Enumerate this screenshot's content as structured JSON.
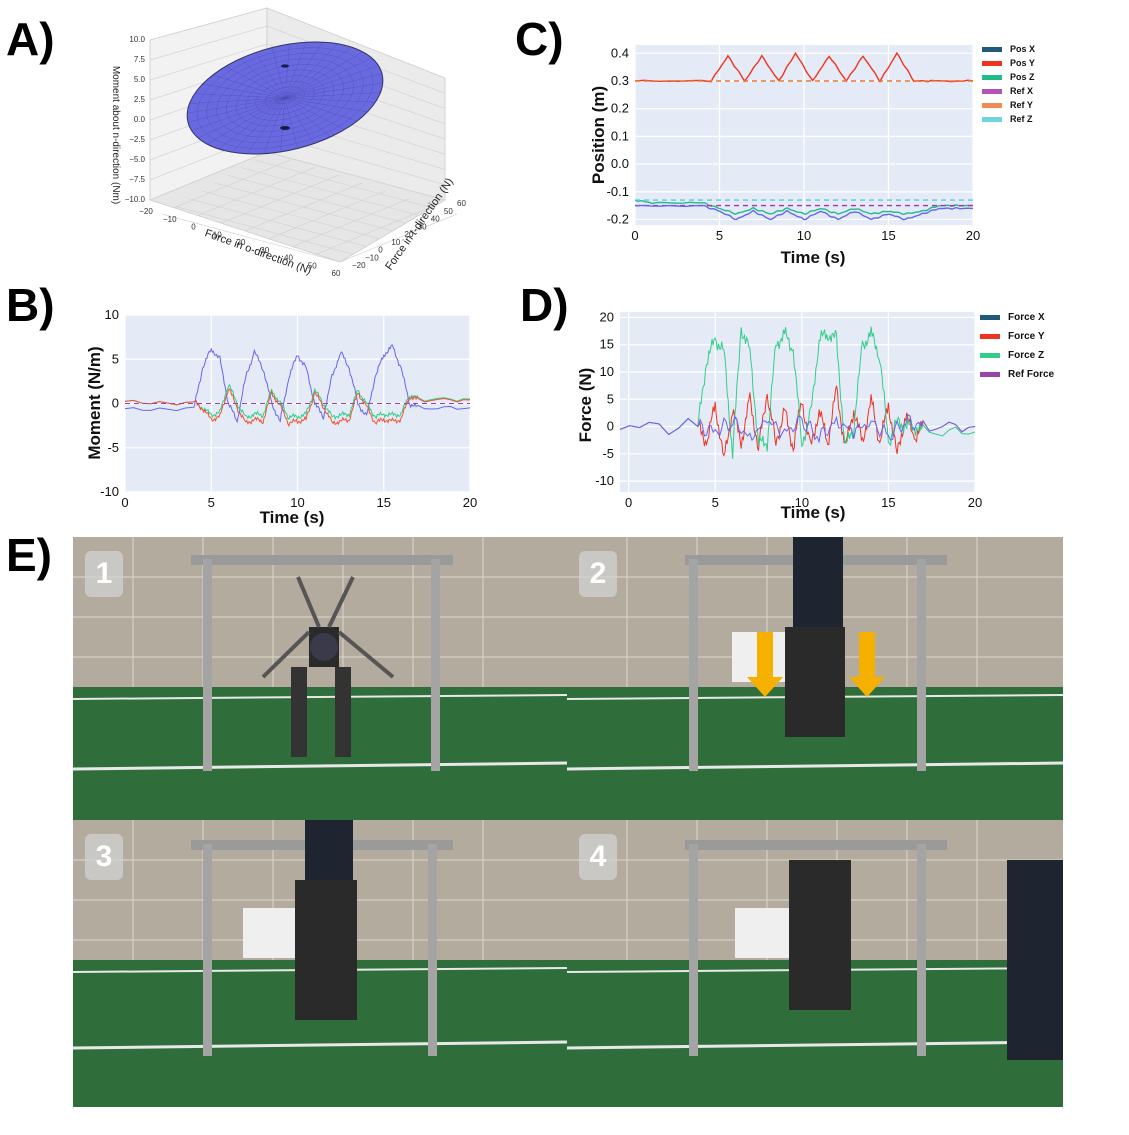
{
  "labels": {
    "a": "A)",
    "b": "B)",
    "c": "C)",
    "d": "D)",
    "e": "E)"
  },
  "chart_data": [
    {
      "panel": "A",
      "type": "scatter",
      "xlabel": "Force in o-direction (N)",
      "ylabel": "Force in t-direction (N)",
      "zlabel": "Moment about n-direction (Nm)",
      "xticks": [
        "−20",
        "−10",
        "0",
        "10",
        "20",
        "30",
        "40",
        "50",
        "60"
      ],
      "yticks": [
        "−20",
        "−10",
        "0",
        "10",
        "20",
        "30",
        "40",
        "50",
        "60"
      ],
      "zticks": [
        "−10.0",
        "−7.5",
        "−5.0",
        "−2.5",
        "0.0",
        "2.5",
        "5.0",
        "7.5",
        "10.0"
      ],
      "surface_color": "#6a6ae0",
      "grid": true
    },
    {
      "panel": "B",
      "type": "line",
      "xlabel": "Time (s)",
      "ylabel": "Moment (N/m)",
      "xlim": [
        0,
        20
      ],
      "ylim": [
        -10,
        10
      ],
      "xticks": [
        0,
        5,
        10,
        15,
        20
      ],
      "yticks": [
        10,
        5,
        0,
        -5,
        -10
      ],
      "series": [
        {
          "color": "#6666ee",
          "x": [
            0,
            4,
            4.5,
            5,
            5.5,
            6,
            6.5,
            7,
            7.5,
            8,
            8.5,
            9,
            9.5,
            10,
            10.5,
            11,
            11.5,
            12,
            12.5,
            13,
            13.5,
            14,
            14.5,
            15,
            15.5,
            16,
            16.5,
            17,
            20
          ],
          "y": [
            -0.5,
            -0.5,
            4,
            6.2,
            5,
            0,
            -2,
            3,
            5.8,
            4,
            0,
            -2,
            3,
            5.5,
            4,
            0,
            -1.5,
            3,
            5.8,
            4,
            0,
            -1.5,
            3,
            5.5,
            6.5,
            4,
            0,
            -0.5,
            -0.5
          ]
        },
        {
          "color": "#33cc88",
          "x": [
            0,
            4,
            4.5,
            5,
            5.5,
            6,
            6.5,
            7,
            7.5,
            8,
            8.5,
            9,
            9.5,
            10,
            10.5,
            11,
            11.5,
            12,
            12.5,
            13,
            13.5,
            14,
            14.5,
            15,
            15.5,
            16,
            16.5,
            17,
            20
          ],
          "y": [
            0.2,
            0.2,
            -0.5,
            -1.3,
            -1,
            2.2,
            0,
            -1.6,
            -1.2,
            -1.3,
            1.5,
            0,
            -1.5,
            -1.5,
            -1.2,
            1.5,
            0,
            -1.5,
            -1.3,
            -1.2,
            1.5,
            0,
            -1.5,
            -1.2,
            -1.3,
            -1.2,
            1,
            0.5,
            0.5
          ]
        },
        {
          "color": "#ee5533",
          "x": [
            0,
            4,
            4.5,
            5,
            5.5,
            6,
            6.5,
            7,
            7.5,
            8,
            8.5,
            9,
            9.5,
            10,
            10.5,
            11,
            11.5,
            12,
            12.5,
            13,
            13.5,
            14,
            14.5,
            15,
            15.5,
            16,
            16.5,
            17,
            20
          ],
          "y": [
            0.2,
            0.2,
            -0.6,
            -1.8,
            -1.5,
            1.8,
            -0.5,
            -2.2,
            -1.8,
            -2,
            1.2,
            -0.3,
            -2.2,
            -2,
            -1.8,
            1.2,
            -0.3,
            -2.2,
            -2,
            -1.8,
            1.2,
            -0.3,
            -2.2,
            -1.8,
            -2,
            -1.8,
            0.8,
            0.4,
            0.4
          ]
        },
        {
          "color": "#9944aa",
          "dashed": true,
          "x": [
            0,
            20
          ],
          "y": [
            0,
            0
          ]
        }
      ]
    },
    {
      "panel": "C",
      "type": "line",
      "xlabel": "Time (s)",
      "ylabel": "Position (m)",
      "xlim": [
        0,
        20
      ],
      "ylim": [
        -0.22,
        0.43
      ],
      "xticks": [
        0,
        5,
        10,
        15,
        20
      ],
      "yticks": [
        0.4,
        0.3,
        0.2,
        0.1,
        0.0,
        -0.1,
        -0.2
      ],
      "legend_position": "right",
      "series": [
        {
          "name": "Pos X",
          "color": "#1f5a7a",
          "x": [
            0,
            20
          ],
          "y": [
            -0.155,
            -0.155
          ],
          "hidden": true
        },
        {
          "name": "Pos Y",
          "color": "#ee3322",
          "x": [
            0,
            4.5,
            5.5,
            6.5,
            7.5,
            8.5,
            9.5,
            10.5,
            11.5,
            12.5,
            13.5,
            14.5,
            15.5,
            16.5,
            17.5,
            20
          ],
          "y": [
            0.3,
            0.3,
            0.39,
            0.3,
            0.39,
            0.3,
            0.4,
            0.3,
            0.39,
            0.3,
            0.39,
            0.3,
            0.4,
            0.3,
            0.3,
            0.3
          ]
        },
        {
          "name": "Pos Z",
          "color": "#22bb88",
          "x": [
            0,
            1,
            4,
            5,
            6,
            7,
            8,
            9,
            10,
            11,
            12,
            13,
            14,
            15,
            16,
            17,
            18,
            20
          ],
          "y": [
            -0.13,
            -0.14,
            -0.14,
            -0.16,
            -0.18,
            -0.16,
            -0.18,
            -0.16,
            -0.18,
            -0.16,
            -0.18,
            -0.16,
            -0.18,
            -0.17,
            -0.18,
            -0.17,
            -0.15,
            -0.15
          ]
        },
        {
          "name": "Ref X",
          "color": "#aa33aa",
          "dashed": true,
          "x": [
            0,
            20
          ],
          "y": [
            -0.15,
            -0.15
          ]
        },
        {
          "name": "Ref Y",
          "color": "#ee7733",
          "dashed": true,
          "x": [
            0,
            20
          ],
          "y": [
            0.3,
            0.3
          ]
        },
        {
          "name": "Ref Z",
          "color": "#55ccdd",
          "dashed": true,
          "x": [
            0,
            20
          ],
          "y": [
            -0.13,
            -0.13
          ]
        },
        {
          "color": "#6666ee",
          "x": [
            0,
            4,
            5,
            6,
            7,
            8,
            9,
            10,
            11,
            12,
            13,
            14,
            15,
            16,
            17,
            18,
            20
          ],
          "y": [
            -0.15,
            -0.15,
            -0.17,
            -0.2,
            -0.17,
            -0.2,
            -0.17,
            -0.2,
            -0.17,
            -0.2,
            -0.17,
            -0.2,
            -0.18,
            -0.2,
            -0.18,
            -0.16,
            -0.16
          ]
        }
      ]
    },
    {
      "panel": "D",
      "type": "line",
      "xlabel": "Time (s)",
      "ylabel": "Force (N)",
      "xlim": [
        -0.5,
        20
      ],
      "ylim": [
        -12,
        21
      ],
      "xticks": [
        0,
        5,
        10,
        15,
        20
      ],
      "yticks": [
        20,
        15,
        10,
        5,
        0,
        -5,
        -10
      ],
      "legend_position": "right",
      "series": [
        {
          "name": "Force X",
          "color": "#1f5a7a",
          "x": [
            0,
            20
          ],
          "y": [
            0,
            0
          ],
          "hidden": true
        },
        {
          "name": "Force Y",
          "color": "#ee3322",
          "x": [
            -0.5,
            4,
            4.5,
            5,
            5.5,
            6,
            6.5,
            7,
            7.5,
            8,
            8.5,
            9,
            9.5,
            10,
            10.5,
            11,
            11.5,
            12,
            12.5,
            13,
            13.5,
            14,
            14.5,
            15,
            15.5,
            16,
            16.5,
            17,
            20
          ],
          "y": [
            0,
            0,
            -3,
            4,
            -6,
            3,
            -3,
            5,
            -4,
            6,
            -3,
            3,
            -4,
            5,
            -4,
            3,
            -3,
            7,
            -4,
            3,
            -3,
            5,
            -3,
            4,
            -5,
            2,
            -2,
            0,
            0
          ]
        },
        {
          "name": "Force Z",
          "color": "#33cc88",
          "x": [
            -0.5,
            4,
            4.5,
            5,
            5.5,
            6,
            6.5,
            7,
            7.5,
            8,
            8.5,
            9,
            9.5,
            10,
            10.5,
            11,
            11.5,
            12,
            12.5,
            13,
            13.5,
            14,
            14.5,
            15,
            15.5,
            16,
            16.5,
            17,
            20
          ],
          "y": [
            0,
            0,
            12,
            16,
            14,
            -5,
            18,
            14,
            -3,
            -3,
            15,
            17,
            14,
            -3,
            2,
            16,
            17,
            16,
            -4,
            0,
            15,
            17,
            13,
            -3,
            1,
            0,
            0,
            -1,
            -1
          ]
        },
        {
          "name": "Ref Force",
          "color": "#9944aa",
          "x": [
            0,
            20
          ],
          "y": [
            0,
            0
          ],
          "hidden": true
        },
        {
          "color": "#6666ee",
          "x": [
            -0.5,
            4,
            5,
            6,
            7,
            8,
            9,
            10,
            11,
            12,
            13,
            14,
            15,
            16,
            17,
            20
          ],
          "y": [
            0,
            0,
            -1,
            1,
            -2,
            1,
            -1,
            1,
            -2,
            1,
            -1,
            1,
            -2,
            1,
            0,
            0
          ]
        }
      ]
    }
  ],
  "photos": [
    {
      "number": "1"
    },
    {
      "number": "2"
    },
    {
      "number": "3"
    },
    {
      "number": "4"
    }
  ]
}
